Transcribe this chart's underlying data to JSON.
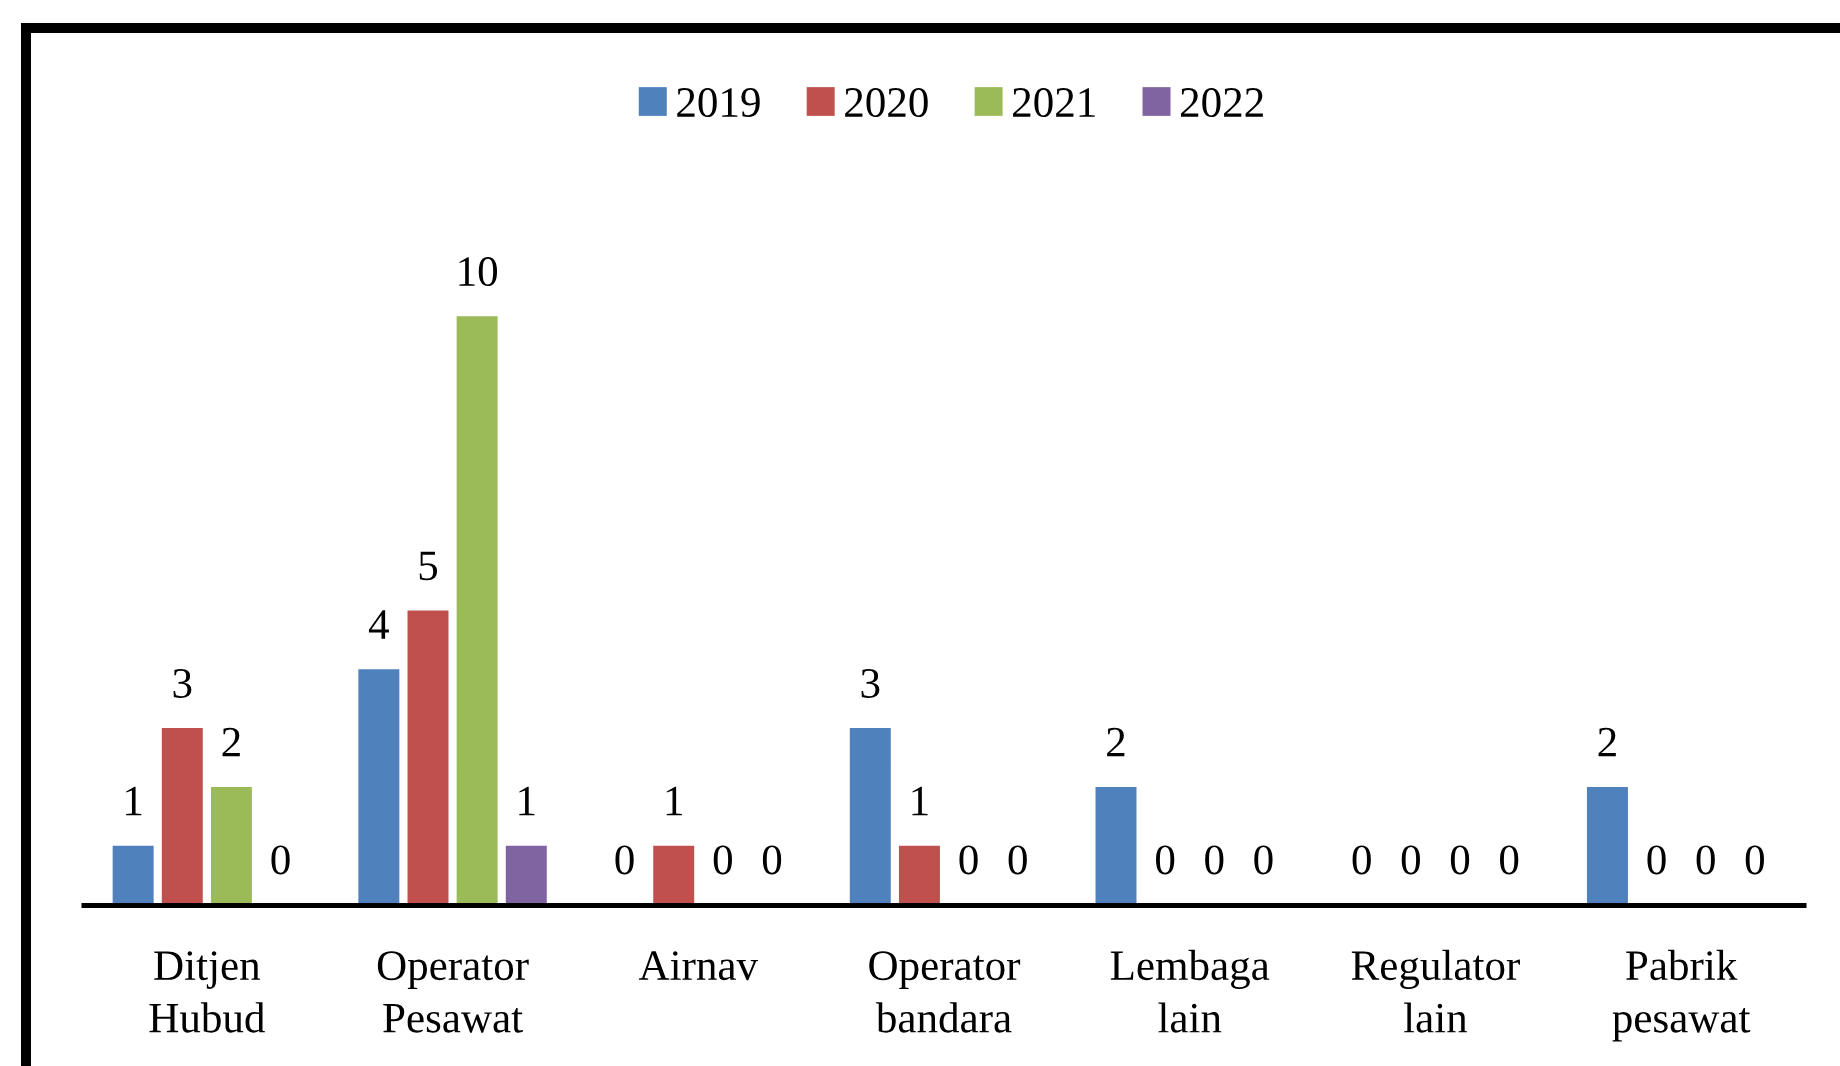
{
  "chart_data": {
    "type": "bar",
    "categories": [
      "Ditjen Hubud",
      "Operator Pesawat",
      "Airnav",
      "Operator bandara",
      "Lembaga lain",
      "Regulator lain",
      "Pabrik pesawat"
    ],
    "series": [
      {
        "name": "2019",
        "color": "#4f81bd",
        "values": [
          1,
          4,
          0,
          3,
          2,
          0,
          2
        ]
      },
      {
        "name": "2020",
        "color": "#c0504d",
        "values": [
          3,
          5,
          1,
          1,
          0,
          0,
          0
        ]
      },
      {
        "name": "2021",
        "color": "#9bbb59",
        "values": [
          2,
          10,
          0,
          0,
          0,
          0,
          0
        ]
      },
      {
        "name": "2022",
        "color": "#8064a2",
        "values": [
          0,
          1,
          0,
          0,
          0,
          0,
          0
        ]
      }
    ],
    "data_labels": true,
    "legend": "top",
    "tick_labels": "x"
  }
}
